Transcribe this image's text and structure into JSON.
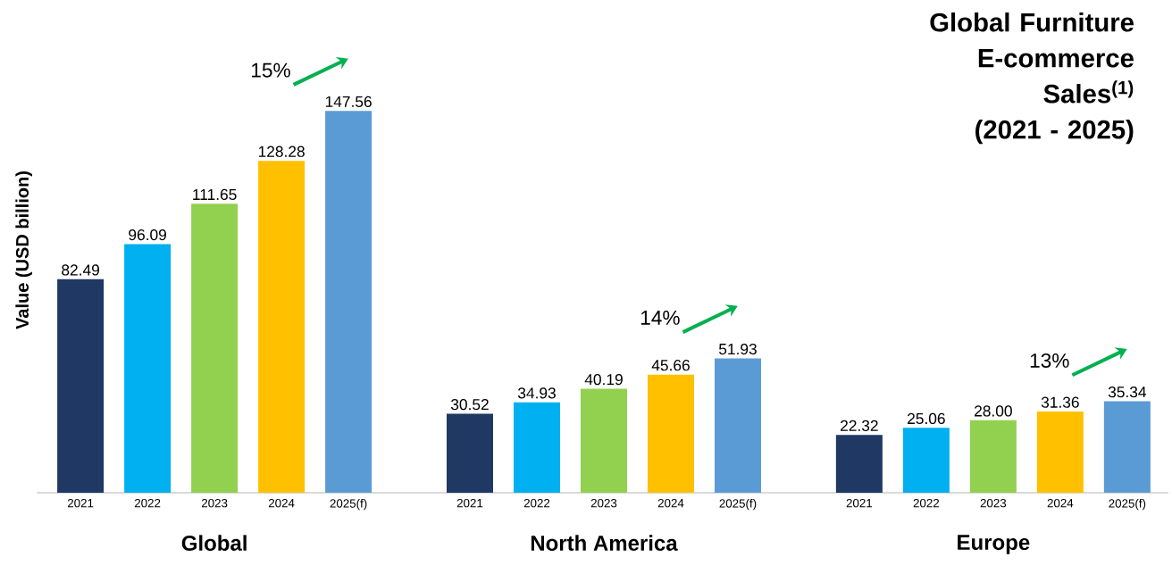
{
  "chart_data": {
    "type": "bar",
    "title": "Global Furniture E-commerce Sales$^{(1)}$",
    "subtitle": "(2021 - 2025)",
    "ylabel": "Value (USD billion)",
    "categories": [
      "Global",
      "North America",
      "Europe"
    ],
    "series": [
      {
        "name": "2021",
        "color": "#1f3864",
        "values": [
          82.49,
          30.52,
          22.32
        ],
        "value_labels": [
          "82.49",
          "30.52",
          "22.32"
        ]
      },
      {
        "name": "2022",
        "color": "#00b0f0",
        "values": [
          96.09,
          34.93,
          25.06
        ],
        "value_labels": [
          "96.09",
          "34.93",
          "25.06"
        ]
      },
      {
        "name": "2023",
        "color": "#92d050",
        "values": [
          111.65,
          40.19,
          28.0
        ],
        "value_labels": [
          "111.65",
          "40.19",
          "28.00"
        ]
      },
      {
        "name": "2024",
        "color": "#ffc000",
        "values": [
          128.28,
          45.66,
          31.36
        ],
        "value_labels": [
          "128.28",
          "45.66",
          "31.36"
        ]
      },
      {
        "name": "2025(f)",
        "color": "#5b9bd5",
        "values": [
          147.56,
          51.93,
          35.34
        ],
        "value_labels": [
          "147.56",
          "51.93",
          "35.34"
        ]
      }
    ],
    "annotations": [
      "15%",
      "14%",
      "13%"
    ]
  }
}
